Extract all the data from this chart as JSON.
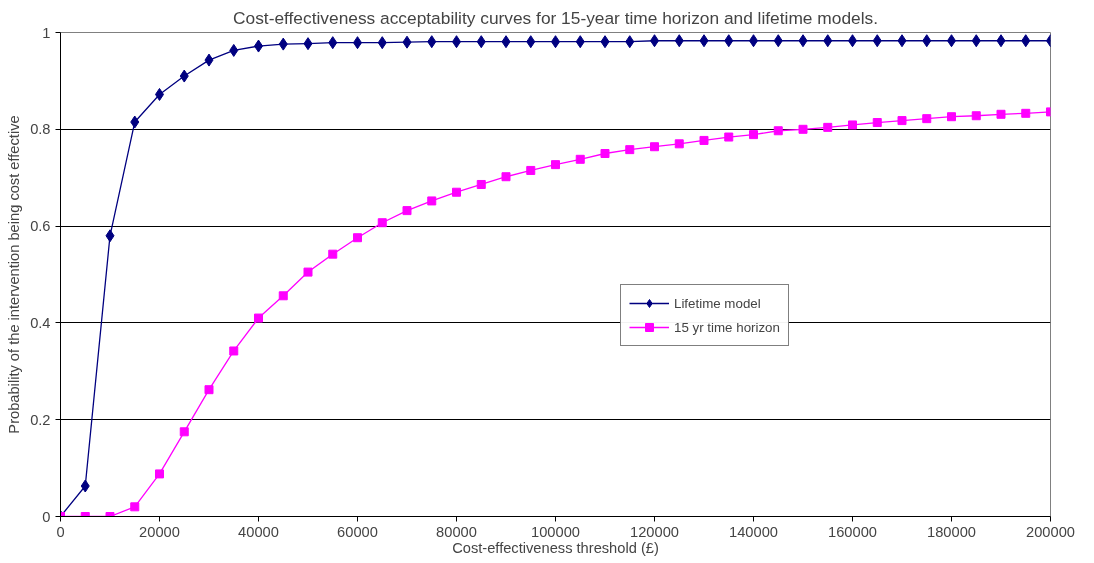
{
  "chart_data": {
    "type": "line",
    "title": "Cost-effectiveness acceptability curves for 15-year time horizon and lifetime models.",
    "xlabel": "Cost-effectiveness threshold (£)",
    "ylabel": "Probability of the intervention being cost effective",
    "x": [
      0,
      5000,
      10000,
      15000,
      20000,
      25000,
      30000,
      35000,
      40000,
      45000,
      50000,
      55000,
      60000,
      65000,
      70000,
      75000,
      80000,
      85000,
      90000,
      95000,
      100000,
      105000,
      110000,
      115000,
      120000,
      125000,
      130000,
      135000,
      140000,
      145000,
      150000,
      155000,
      160000,
      165000,
      170000,
      175000,
      180000,
      185000,
      190000,
      195000,
      200000
    ],
    "series": [
      {
        "name": "Lifetime model",
        "color": "#000080",
        "marker": "diamond",
        "values": [
          0,
          0.063,
          0.58,
          0.815,
          0.872,
          0.91,
          0.943,
          0.963,
          0.972,
          0.976,
          0.977,
          0.979,
          0.979,
          0.979,
          0.98,
          0.981,
          0.981,
          0.981,
          0.981,
          0.981,
          0.981,
          0.981,
          0.981,
          0.981,
          0.983,
          0.983,
          0.983,
          0.983,
          0.983,
          0.983,
          0.983,
          0.983,
          0.983,
          0.983,
          0.983,
          0.983,
          0.983,
          0.983,
          0.983,
          0.983,
          0.983
        ]
      },
      {
        "name": "15 yr time horizon",
        "color": "#ff00ff",
        "marker": "square",
        "values": [
          0,
          0,
          0,
          0.02,
          0.088,
          0.175,
          0.262,
          0.342,
          0.41,
          0.456,
          0.505,
          0.542,
          0.576,
          0.607,
          0.632,
          0.652,
          0.67,
          0.686,
          0.702,
          0.715,
          0.727,
          0.738,
          0.75,
          0.758,
          0.764,
          0.77,
          0.777,
          0.784,
          0.789,
          0.797,
          0.8,
          0.804,
          0.809,
          0.814,
          0.818,
          0.822,
          0.826,
          0.828,
          0.831,
          0.833,
          0.836
        ]
      }
    ],
    "xlim": [
      0,
      200000
    ],
    "xticks": [
      0,
      20000,
      40000,
      60000,
      80000,
      100000,
      120000,
      140000,
      160000,
      180000,
      200000
    ],
    "ylim": [
      0,
      1
    ],
    "yticks": [
      0,
      0.2,
      0.4,
      0.6,
      0.8,
      1
    ],
    "grid": "y",
    "legend": "center right"
  }
}
